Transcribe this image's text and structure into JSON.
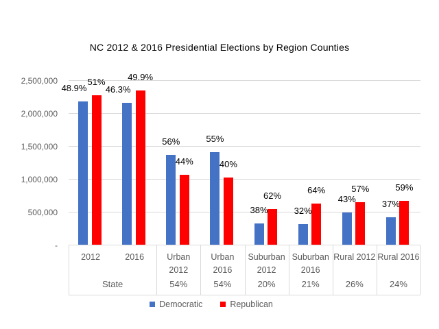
{
  "chart_data": {
    "type": "bar",
    "title": "NC 2012 & 2016 Presidential Elections by Region Counties",
    "categories": [
      "2012",
      "2016",
      "Urban\n2012",
      "Urban\n2016",
      "Suburban\n2012",
      "Suburban\n2016",
      "Rural 2012",
      "Rural 2016"
    ],
    "group_row": [
      {
        "label": "State",
        "span": 2
      },
      {
        "label": "54%",
        "span": 1
      },
      {
        "label": "54%",
        "span": 1
      },
      {
        "label": "20%",
        "span": 1
      },
      {
        "label": "21%",
        "span": 1
      },
      {
        "label": "26%",
        "span": 1
      },
      {
        "label": "24%",
        "span": 1
      }
    ],
    "series": [
      {
        "name": "Democratic",
        "color": "#4472C4",
        "values": [
          2180000,
          2165000,
          1365000,
          1415000,
          325000,
          315000,
          490000,
          425000
        ],
        "labels": [
          "48.9%",
          "46.3%",
          "56%",
          "55%",
          "38%",
          "32%",
          "43%",
          "37%"
        ]
      },
      {
        "name": "Republican",
        "color": "#FF0000",
        "values": [
          2275000,
          2345000,
          1070000,
          1025000,
          550000,
          635000,
          655000,
          675000
        ],
        "labels": [
          "51%",
          "49.9%",
          "44%",
          "40%",
          "62%",
          "64%",
          "57%",
          "59%"
        ]
      }
    ],
    "y_axis": {
      "max": 2500000,
      "ticks": [
        {
          "value": 2500000,
          "label": "2,500,000"
        },
        {
          "value": 2000000,
          "label": "2,000,000"
        },
        {
          "value": 1500000,
          "label": "1,500,000"
        },
        {
          "value": 1000000,
          "label": "1,000,000"
        },
        {
          "value": 500000,
          "label": "500,000"
        },
        {
          "value": 0,
          "label": "-"
        }
      ]
    },
    "grid": true,
    "legend_position": "bottom",
    "colors": {
      "democratic": "#4472C4",
      "republican": "#FF0000",
      "axis_text": "#595959",
      "gridline": "#D9D9D9",
      "label_text": "#000000"
    }
  }
}
